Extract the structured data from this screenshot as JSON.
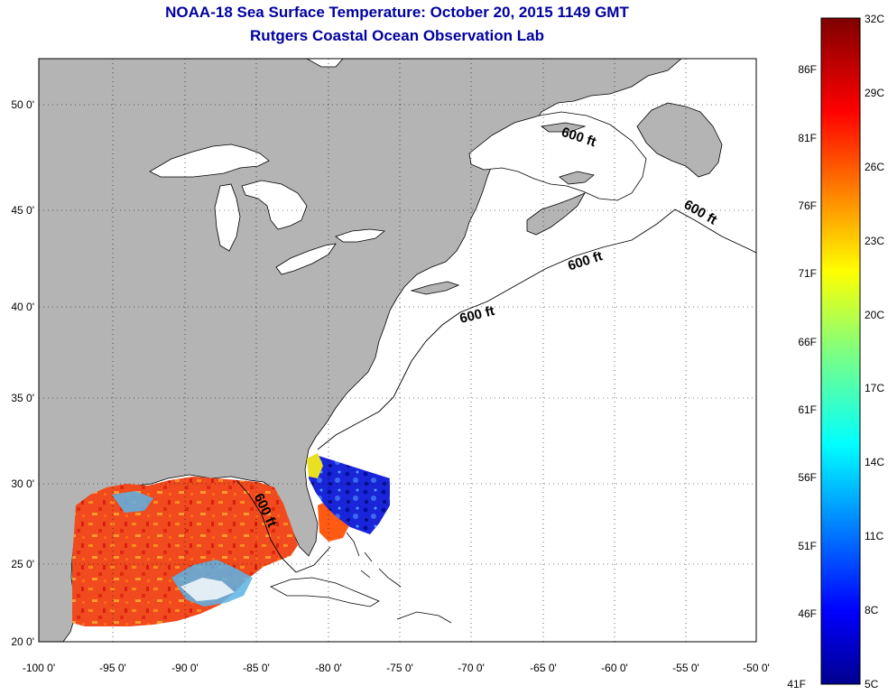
{
  "title": "NOAA-18 Sea Surface Temperature:  October 20, 2015 1149 GMT",
  "subtitle": "Rutgers Coastal Ocean Observation Lab",
  "map": {
    "lon_range": [
      -100,
      -50
    ],
    "lat_range": [
      20,
      52.5
    ],
    "lon_ticks": [
      "-100 0'",
      "-95 0'",
      "-90 0'",
      "-85 0'",
      "-80 0'",
      "-75 0'",
      "-70 0'",
      "-65 0'",
      "-60 0'",
      "-55 0'",
      "-50 0'"
    ],
    "lat_ticks": [
      "20 0'",
      "25 0'",
      "30 0'",
      "35 0'",
      "40 0'",
      "45 0'",
      "50 0'"
    ],
    "grid": "dotted",
    "land_color": "#b4b4b4",
    "ocean_color": "#ffffff",
    "contour_labels": [
      "600 ft",
      "600 ft",
      "600 ft",
      "600 ft",
      "600 ft"
    ]
  },
  "colorbar": {
    "celsius_labels": [
      "32C",
      "29C",
      "26C",
      "23C",
      "20C",
      "17C",
      "14C",
      "11C",
      "8C",
      "5C"
    ],
    "fahrenheit_labels": [
      "86F",
      "81F",
      "76F",
      "71F",
      "66F",
      "61F",
      "56F",
      "51F",
      "46F",
      "41F"
    ],
    "range_celsius": [
      5,
      32
    ]
  }
}
